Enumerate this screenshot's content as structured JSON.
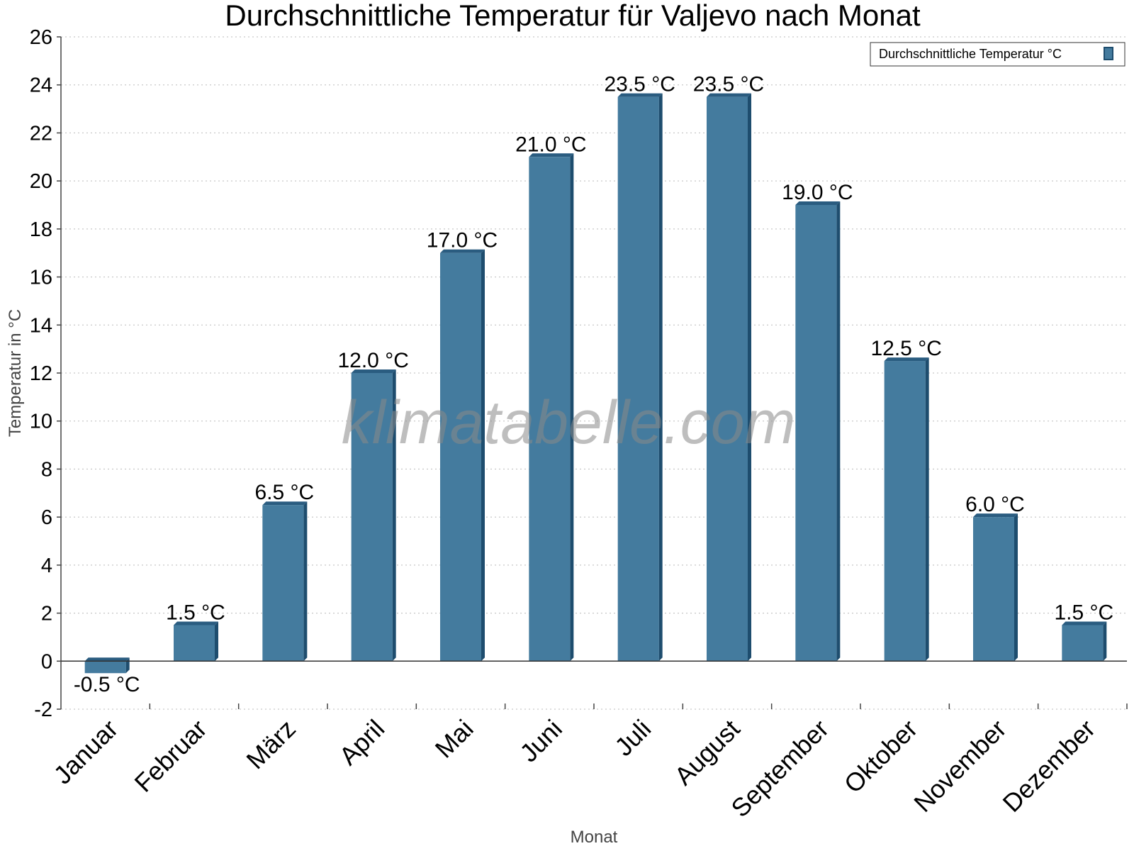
{
  "chart_data": {
    "type": "bar",
    "title": "Durchschnittliche Temperatur für Valjevo nach Monat",
    "xlabel": "Monat",
    "ylabel": "Temperatur in °C",
    "categories": [
      "Januar",
      "Februar",
      "März",
      "April",
      "Mai",
      "Juni",
      "Juli",
      "August",
      "September",
      "Oktober",
      "November",
      "Dezember"
    ],
    "series": [
      {
        "name": "Durchschnittliche Temperatur °C",
        "values": [
          -0.5,
          1.5,
          6.5,
          12.0,
          17.0,
          21.0,
          23.5,
          23.5,
          19.0,
          12.5,
          6.0,
          1.5
        ],
        "color": "#447b9e"
      }
    ],
    "data_labels": [
      "-0.5 °C",
      "1.5 °C",
      "6.5 °C",
      "12.0 °C",
      "17.0 °C",
      "21.0 °C",
      "23.5 °C",
      "23.5 °C",
      "19.0 °C",
      "12.5 °C",
      "6.0 °C",
      "1.5 °C"
    ],
    "ylim": [
      -2,
      26
    ],
    "yticks": [
      "-2",
      "0",
      "2",
      "4",
      "6",
      "8",
      "10",
      "12",
      "14",
      "16",
      "18",
      "20",
      "22",
      "24",
      "26"
    ],
    "grid": true,
    "legend_position": "top-right",
    "watermark": "klimatabelle.com"
  },
  "colors": {
    "bar": "#447b9e",
    "bar_side": "#1e4d6e",
    "bar_top": "#2a5c80",
    "grid": "#bbbbbb"
  }
}
